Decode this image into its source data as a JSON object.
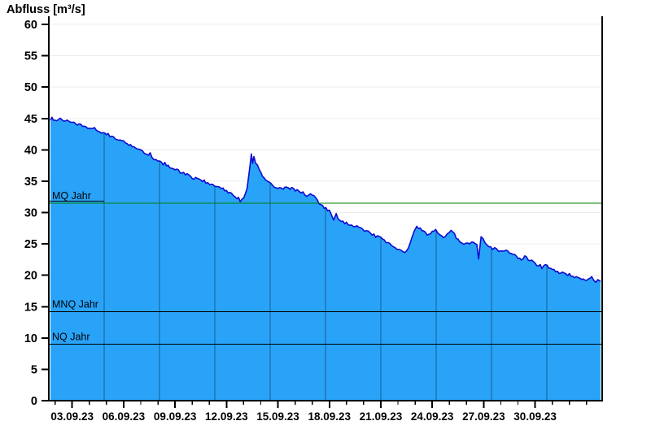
{
  "title": "Abfluss [m³/s]",
  "colors": {
    "series_fill": "#29a3f8",
    "series_line": "#0b0bd0",
    "mq_line": "#008000",
    "ref_line_black": "#000000",
    "h_grid": "#ececec",
    "inner_v_grid": "rgba(0,0,0,0.42)",
    "axis": "#000000",
    "text": "#000000"
  },
  "chart_data": {
    "type": "area",
    "title": "Abfluss [m³/s]",
    "ylabel": "Abfluss [m³/s]",
    "ylim": [
      0,
      60
    ],
    "yticks": [
      0,
      5,
      10,
      15,
      20,
      25,
      30,
      35,
      40,
      45,
      50,
      55,
      60
    ],
    "grid": {
      "horizontal": true,
      "vertical_inner_divisions": 10
    },
    "x_axis": {
      "major_tick_labels": [
        "03.09.23",
        "06.09.23",
        "09.09.23",
        "12.09.23",
        "15.09.23",
        "18.09.23",
        "21.09.23",
        "24.09.23",
        "27.09.23",
        "30.09.23"
      ],
      "days_per_major_tick": 3,
      "minor_tick_unit": "1 day",
      "x_unit": "days (0 = 03.09.23)",
      "xlim": [
        -1.27,
        30.85
      ]
    },
    "reference_lines": [
      {
        "label": "MQ Jahr",
        "value": 31.5,
        "color": "#008000",
        "label_underline": true
      },
      {
        "label": "MNQ Jahr",
        "value": 14.2,
        "color": "#000000",
        "label_underline": false
      },
      {
        "label": "NQ Jahr",
        "value": 9.0,
        "color": "#000000",
        "label_underline": false
      }
    ],
    "series": {
      "name": "Abfluss",
      "points": [
        [
          -1.27,
          45.0
        ],
        [
          -1.0,
          44.9
        ],
        [
          -0.7,
          44.8
        ],
        [
          -0.4,
          44.6
        ],
        [
          0,
          44.3
        ],
        [
          0.4,
          44.0
        ],
        [
          0.8,
          43.7
        ],
        [
          1.2,
          43.4
        ],
        [
          1.6,
          43.0
        ],
        [
          2.0,
          42.5
        ],
        [
          2.4,
          42.1
        ],
        [
          2.8,
          41.5
        ],
        [
          3.0,
          41.2
        ],
        [
          3.3,
          40.9
        ],
        [
          3.6,
          40.5
        ],
        [
          4.0,
          39.9
        ],
        [
          4.3,
          39.4
        ],
        [
          4.45,
          39.0
        ],
        [
          4.55,
          39.5
        ],
        [
          4.65,
          38.8
        ],
        [
          5.0,
          38.2
        ],
        [
          5.5,
          37.6
        ],
        [
          6.0,
          36.9
        ],
        [
          6.5,
          36.2
        ],
        [
          7.0,
          35.6
        ],
        [
          7.5,
          35.1
        ],
        [
          8.0,
          34.7
        ],
        [
          8.5,
          34.2
        ],
        [
          9.0,
          33.5
        ],
        [
          9.5,
          32.7
        ],
        [
          9.8,
          31.9
        ],
        [
          10.0,
          32.3
        ],
        [
          10.2,
          33.8
        ],
        [
          10.35,
          37.0
        ],
        [
          10.45,
          39.3
        ],
        [
          10.52,
          37.8
        ],
        [
          10.6,
          38.9
        ],
        [
          10.7,
          37.9
        ],
        [
          10.9,
          36.8
        ],
        [
          11.1,
          35.9
        ],
        [
          11.4,
          34.8
        ],
        [
          11.9,
          34.1
        ],
        [
          12.4,
          33.9
        ],
        [
          12.9,
          33.7
        ],
        [
          13.35,
          33.2
        ],
        [
          13.8,
          32.6
        ],
        [
          14.0,
          33.0
        ],
        [
          14.3,
          31.8
        ],
        [
          14.5,
          31.3
        ],
        [
          15.0,
          30.2
        ],
        [
          15.25,
          29.0
        ],
        [
          15.4,
          29.6
        ],
        [
          15.7,
          28.7
        ],
        [
          16.2,
          28.1
        ],
        [
          16.7,
          27.6
        ],
        [
          17.15,
          27.0
        ],
        [
          17.6,
          26.4
        ],
        [
          18.0,
          25.9
        ],
        [
          18.4,
          25.1
        ],
        [
          18.75,
          24.4
        ],
        [
          19.05,
          23.9
        ],
        [
          19.4,
          23.7
        ],
        [
          19.7,
          25.0
        ],
        [
          19.95,
          27.1
        ],
        [
          20.1,
          27.7
        ],
        [
          20.5,
          27.0
        ],
        [
          20.8,
          26.5
        ],
        [
          21.0,
          26.8
        ],
        [
          21.2,
          27.2
        ],
        [
          21.45,
          26.2
        ],
        [
          21.65,
          25.9
        ],
        [
          22.1,
          27.2
        ],
        [
          22.6,
          25.4
        ],
        [
          22.85,
          24.8
        ],
        [
          23.3,
          25.4
        ],
        [
          23.6,
          24.9
        ],
        [
          23.7,
          22.6
        ],
        [
          23.85,
          26.1
        ],
        [
          24.3,
          24.6
        ],
        [
          24.75,
          24.1
        ],
        [
          25.2,
          23.9
        ],
        [
          25.7,
          23.3
        ],
        [
          26.2,
          22.4
        ],
        [
          26.4,
          22.9
        ],
        [
          26.9,
          22.0
        ],
        [
          27.0,
          21.9
        ],
        [
          27.4,
          21.3
        ],
        [
          27.7,
          21.5
        ],
        [
          28.1,
          20.8
        ],
        [
          28.5,
          20.4
        ],
        [
          29.0,
          20.1
        ],
        [
          29.5,
          19.7
        ],
        [
          30.0,
          19.4
        ],
        [
          30.3,
          19.6
        ],
        [
          30.55,
          19.0
        ],
        [
          30.75,
          19.3
        ],
        [
          30.85,
          19.0
        ]
      ]
    }
  }
}
